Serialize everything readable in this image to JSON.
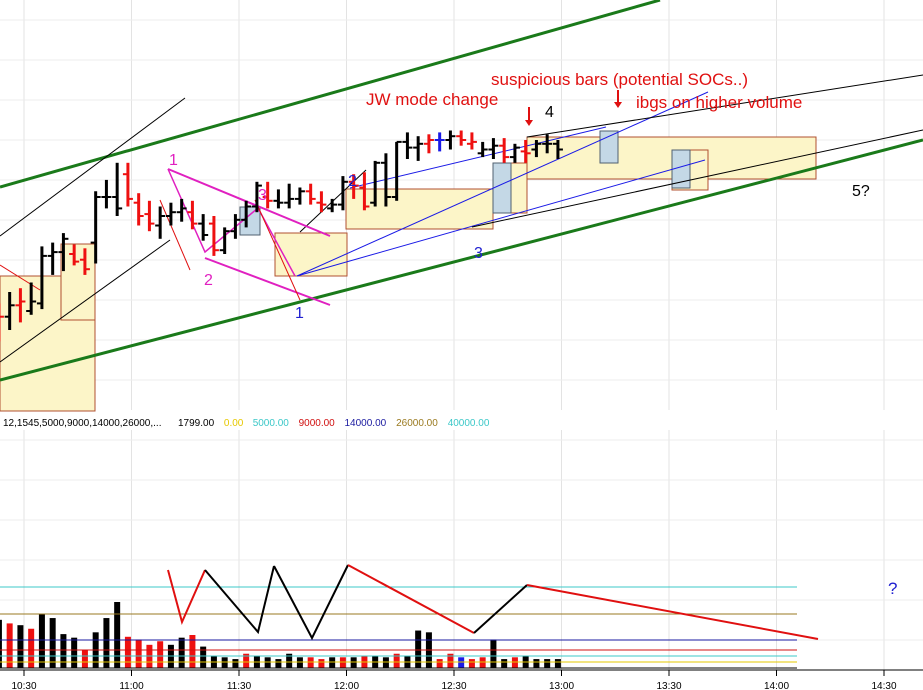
{
  "chart_data": {
    "type": "bar",
    "subtype": "ohlc-price-and-volume",
    "x_ticks": [
      "10:30",
      "11:00",
      "11:30",
      "12:00",
      "12:30",
      "13:00",
      "13:30",
      "14:00",
      "14:30"
    ],
    "price_bars": [
      {
        "time": "10:20",
        "o": -2,
        "h": 22,
        "l": -18,
        "c": 6,
        "color": "black"
      },
      {
        "time": "10:23",
        "o": 4,
        "h": 28,
        "l": -12,
        "c": 14,
        "color": "red"
      },
      {
        "time": "10:26",
        "o": 14,
        "h": 40,
        "l": 0,
        "c": 26,
        "color": "black"
      },
      {
        "time": "10:29",
        "o": 26,
        "h": 44,
        "l": 8,
        "c": 30,
        "color": "red"
      },
      {
        "time": "10:32",
        "o": 20,
        "h": 50,
        "l": 16,
        "c": 30,
        "color": "black"
      },
      {
        "time": "10:35",
        "o": 28,
        "h": 88,
        "l": 22,
        "c": 78,
        "color": "black"
      },
      {
        "time": "10:38",
        "o": 78,
        "h": 92,
        "l": 58,
        "c": 82,
        "color": "black"
      },
      {
        "time": "10:41",
        "o": 82,
        "h": 102,
        "l": 62,
        "c": 96,
        "color": "black"
      },
      {
        "time": "10:44",
        "o": 80,
        "h": 90,
        "l": 68,
        "c": 72,
        "color": "red"
      },
      {
        "time": "10:47",
        "o": 74,
        "h": 86,
        "l": 58,
        "c": 64,
        "color": "red"
      },
      {
        "time": "10:50",
        "o": 92,
        "h": 146,
        "l": 70,
        "c": 140,
        "color": "black"
      },
      {
        "time": "10:53",
        "o": 140,
        "h": 158,
        "l": 128,
        "c": 140,
        "color": "black"
      },
      {
        "time": "10:56",
        "o": 140,
        "h": 176,
        "l": 120,
        "c": 128,
        "color": "black"
      },
      {
        "time": "10:59",
        "o": 164,
        "h": 176,
        "l": 130,
        "c": 138,
        "color": "red"
      },
      {
        "time": "11:02",
        "o": 134,
        "h": 144,
        "l": 110,
        "c": 120,
        "color": "red"
      },
      {
        "time": "11:05",
        "o": 122,
        "h": 136,
        "l": 104,
        "c": 112,
        "color": "red"
      },
      {
        "time": "11:08",
        "o": 110,
        "h": 130,
        "l": 96,
        "c": 120,
        "color": "black"
      },
      {
        "time": "11:11",
        "o": 120,
        "h": 134,
        "l": 110,
        "c": 124,
        "color": "black"
      },
      {
        "time": "11:14",
        "o": 124,
        "h": 138,
        "l": 114,
        "c": 128,
        "color": "black"
      },
      {
        "time": "11:17",
        "o": 124,
        "h": 136,
        "l": 106,
        "c": 112,
        "color": "red"
      },
      {
        "time": "11:20",
        "o": 112,
        "h": 122,
        "l": 94,
        "c": 100,
        "color": "black"
      },
      {
        "time": "11:23",
        "o": 112,
        "h": 120,
        "l": 78,
        "c": 84,
        "color": "red"
      },
      {
        "time": "11:26",
        "o": 84,
        "h": 108,
        "l": 80,
        "c": 104,
        "color": "black"
      },
      {
        "time": "11:29",
        "o": 104,
        "h": 122,
        "l": 96,
        "c": 116,
        "color": "black"
      },
      {
        "time": "11:32",
        "o": 116,
        "h": 136,
        "l": 108,
        "c": 130,
        "color": "black"
      },
      {
        "time": "11:35",
        "o": 130,
        "h": 156,
        "l": 124,
        "c": 152,
        "color": "black"
      },
      {
        "time": "11:38",
        "o": 140,
        "h": 156,
        "l": 128,
        "c": 136,
        "color": "red"
      },
      {
        "time": "11:41",
        "o": 136,
        "h": 148,
        "l": 128,
        "c": 134,
        "color": "black"
      },
      {
        "time": "11:44",
        "o": 134,
        "h": 154,
        "l": 128,
        "c": 138,
        "color": "black"
      },
      {
        "time": "11:47",
        "o": 138,
        "h": 150,
        "l": 132,
        "c": 146,
        "color": "black"
      },
      {
        "time": "11:50",
        "o": 146,
        "h": 154,
        "l": 132,
        "c": 138,
        "color": "red"
      },
      {
        "time": "11:53",
        "o": 134,
        "h": 146,
        "l": 124,
        "c": 132,
        "color": "red"
      },
      {
        "time": "11:56",
        "o": 128,
        "h": 138,
        "l": 124,
        "c": 132,
        "color": "black"
      },
      {
        "time": "11:59",
        "o": 132,
        "h": 162,
        "l": 126,
        "c": 156,
        "color": "black"
      },
      {
        "time": "12:02",
        "o": 156,
        "h": 164,
        "l": 138,
        "c": 152,
        "color": "red"
      },
      {
        "time": "12:05",
        "o": 150,
        "h": 166,
        "l": 126,
        "c": 130,
        "color": "red"
      },
      {
        "time": "12:08",
        "o": 134,
        "h": 178,
        "l": 130,
        "c": 176,
        "color": "black"
      },
      {
        "time": "12:11",
        "o": 176,
        "h": 186,
        "l": 130,
        "c": 140,
        "color": "black"
      },
      {
        "time": "12:14",
        "o": 140,
        "h": 198,
        "l": 136,
        "c": 198,
        "color": "black"
      },
      {
        "time": "12:17",
        "o": 198,
        "h": 208,
        "l": 180,
        "c": 192,
        "color": "black"
      },
      {
        "time": "12:20",
        "o": 192,
        "h": 204,
        "l": 178,
        "c": 196,
        "color": "black"
      },
      {
        "time": "12:23",
        "o": 196,
        "h": 206,
        "l": 186,
        "c": 200,
        "color": "red"
      },
      {
        "time": "12:26",
        "o": 200,
        "h": 208,
        "l": 188,
        "c": 200,
        "color": "blue"
      },
      {
        "time": "12:29",
        "o": 200,
        "h": 210,
        "l": 190,
        "c": 204,
        "color": "black"
      },
      {
        "time": "12:32",
        "o": 204,
        "h": 210,
        "l": 194,
        "c": 200,
        "color": "red"
      },
      {
        "time": "12:35",
        "o": 196,
        "h": 208,
        "l": 190,
        "c": 198,
        "color": "red"
      },
      {
        "time": "12:38",
        "o": 186,
        "h": 198,
        "l": 182,
        "c": 190,
        "color": "black"
      },
      {
        "time": "12:41",
        "o": 190,
        "h": 202,
        "l": 180,
        "c": 194,
        "color": "black"
      },
      {
        "time": "12:44",
        "o": 194,
        "h": 202,
        "l": 176,
        "c": 182,
        "color": "red"
      },
      {
        "time": "12:47",
        "o": 182,
        "h": 196,
        "l": 176,
        "c": 192,
        "color": "black"
      },
      {
        "time": "12:50",
        "o": 188,
        "h": 200,
        "l": 176,
        "c": 186,
        "color": "red"
      },
      {
        "time": "12:53",
        "o": 190,
        "h": 200,
        "l": 182,
        "c": 196,
        "color": "black"
      },
      {
        "time": "12:56",
        "o": 196,
        "h": 206,
        "l": 186,
        "c": 196,
        "color": "black"
      },
      {
        "time": "12:59",
        "o": 196,
        "h": 200,
        "l": 180,
        "c": 190,
        "color": "black"
      }
    ],
    "volume_bars": [
      {
        "time": "10:20",
        "v": 5200,
        "color": "black"
      },
      {
        "time": "10:23",
        "v": 5400,
        "color": "black"
      },
      {
        "time": "10:26",
        "v": 5000,
        "color": "red"
      },
      {
        "time": "10:29",
        "v": 4800,
        "color": "black"
      },
      {
        "time": "10:32",
        "v": 4400,
        "color": "red"
      },
      {
        "time": "10:35",
        "v": 6000,
        "color": "black"
      },
      {
        "time": "10:38",
        "v": 5600,
        "color": "black"
      },
      {
        "time": "10:41",
        "v": 3800,
        "color": "black"
      },
      {
        "time": "10:44",
        "v": 3400,
        "color": "black"
      },
      {
        "time": "10:47",
        "v": 2000,
        "color": "red"
      },
      {
        "time": "10:50",
        "v": 4000,
        "color": "black"
      },
      {
        "time": "10:53",
        "v": 5600,
        "color": "black"
      },
      {
        "time": "10:56",
        "v": 7400,
        "color": "black"
      },
      {
        "time": "10:59",
        "v": 3500,
        "color": "red"
      },
      {
        "time": "11:02",
        "v": 3200,
        "color": "red"
      },
      {
        "time": "11:05",
        "v": 2600,
        "color": "red"
      },
      {
        "time": "11:08",
        "v": 3000,
        "color": "red"
      },
      {
        "time": "11:11",
        "v": 2600,
        "color": "black"
      },
      {
        "time": "11:14",
        "v": 3400,
        "color": "black"
      },
      {
        "time": "11:17",
        "v": 3700,
        "color": "red"
      },
      {
        "time": "11:20",
        "v": 2400,
        "color": "black"
      },
      {
        "time": "11:23",
        "v": 1400,
        "color": "black"
      },
      {
        "time": "11:26",
        "v": 1200,
        "color": "black"
      },
      {
        "time": "11:29",
        "v": 1000,
        "color": "black"
      },
      {
        "time": "11:32",
        "v": 1600,
        "color": "red"
      },
      {
        "time": "11:35",
        "v": 1400,
        "color": "black"
      },
      {
        "time": "11:38",
        "v": 1200,
        "color": "black"
      },
      {
        "time": "11:41",
        "v": 1000,
        "color": "black"
      },
      {
        "time": "11:44",
        "v": 1600,
        "color": "black"
      },
      {
        "time": "11:47",
        "v": 1200,
        "color": "black"
      },
      {
        "time": "11:50",
        "v": 1200,
        "color": "red"
      },
      {
        "time": "11:53",
        "v": 1000,
        "color": "red"
      },
      {
        "time": "11:56",
        "v": 1200,
        "color": "black"
      },
      {
        "time": "11:59",
        "v": 1200,
        "color": "red"
      },
      {
        "time": "12:02",
        "v": 1200,
        "color": "black"
      },
      {
        "time": "12:05",
        "v": 1300,
        "color": "red"
      },
      {
        "time": "12:08",
        "v": 1300,
        "color": "black"
      },
      {
        "time": "12:11",
        "v": 1200,
        "color": "black"
      },
      {
        "time": "12:14",
        "v": 1600,
        "color": "red"
      },
      {
        "time": "12:17",
        "v": 1400,
        "color": "black"
      },
      {
        "time": "12:20",
        "v": 4200,
        "color": "black"
      },
      {
        "time": "12:23",
        "v": 4000,
        "color": "black"
      },
      {
        "time": "12:26",
        "v": 1000,
        "color": "red"
      },
      {
        "time": "12:29",
        "v": 1600,
        "color": "red"
      },
      {
        "time": "12:32",
        "v": 1200,
        "color": "blue"
      },
      {
        "time": "12:35",
        "v": 1000,
        "color": "red"
      },
      {
        "time": "12:38",
        "v": 1200,
        "color": "red"
      },
      {
        "time": "12:41",
        "v": 3200,
        "color": "black"
      },
      {
        "time": "12:44",
        "v": 1000,
        "color": "black"
      },
      {
        "time": "12:47",
        "v": 1200,
        "color": "red"
      },
      {
        "time": "12:50",
        "v": 1400,
        "color": "black"
      },
      {
        "time": "12:53",
        "v": 1000,
        "color": "black"
      },
      {
        "time": "12:56",
        "v": 1000,
        "color": "black"
      },
      {
        "time": "12:59",
        "v": 1000,
        "color": "black"
      }
    ],
    "volume_levels": [
      {
        "label": "1799.00",
        "value": 1799,
        "color": "#000000"
      },
      {
        "label": "0.00",
        "value": 0,
        "color": "#e6c800"
      },
      {
        "label": "5000.00",
        "value": 5000,
        "color": "#3cc8c8"
      },
      {
        "label": "9000.00",
        "value": 9000,
        "color": "#d01010"
      },
      {
        "label": "14000.00",
        "value": 14000,
        "color": "#1a1aa0"
      },
      {
        "label": "26000.00",
        "value": 26000,
        "color": "#9a7a20"
      },
      {
        "label": "40000.00",
        "value": 40000,
        "color": "#3cc8c8"
      }
    ],
    "parameters_label": "12,1545,5000,9000,14000,26000,...",
    "annotations": {
      "jw_mode_change": "JW mode change",
      "suspicious_bars": "suspicious bars (potential SOCs..)",
      "ibgs": "ibgs on higher volume",
      "label_4": "4",
      "label_5q": "5?",
      "wave_1_magenta": "1",
      "wave_2_magenta": "2",
      "wave_3_magenta": "3",
      "wave_1_blue": "1",
      "wave_2_blue": "2",
      "wave_3_blue": "3",
      "volume_question": "?"
    },
    "grid": true
  }
}
